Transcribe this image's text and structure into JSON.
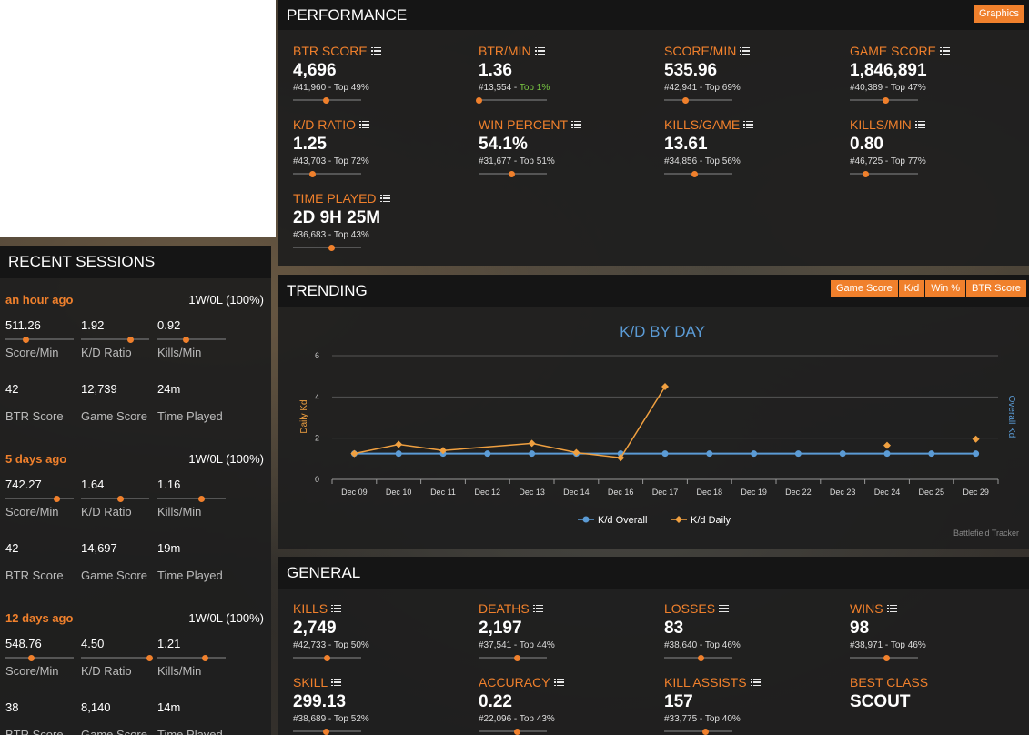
{
  "performance": {
    "title": "PERFORMANCE",
    "graphics_button": "Graphics",
    "stats": [
      {
        "label": "BTR SCORE",
        "value": "4,696",
        "rank": "#41,960",
        "top": "Top 49%",
        "top_highlight": false,
        "fill": 0.49
      },
      {
        "label": "BTR/MIN",
        "value": "1.36",
        "rank": "#13,554",
        "top": "Top 1%",
        "top_highlight": true,
        "fill": 0.01
      },
      {
        "label": "SCORE/MIN",
        "value": "535.96",
        "rank": "#42,941",
        "top": "Top 69%",
        "top_highlight": false,
        "fill": 0.31
      },
      {
        "label": "GAME SCORE",
        "value": "1,846,891",
        "rank": "#40,389",
        "top": "Top 47%",
        "top_highlight": false,
        "fill": 0.53
      },
      {
        "label": "K/D RATIO",
        "value": "1.25",
        "rank": "#43,703",
        "top": "Top 72%",
        "top_highlight": false,
        "fill": 0.28
      },
      {
        "label": "WIN PERCENT",
        "value": "54.1%",
        "rank": "#31,677",
        "top": "Top 51%",
        "top_highlight": false,
        "fill": 0.49
      },
      {
        "label": "KILLS/GAME",
        "value": "13.61",
        "rank": "#34,856",
        "top": "Top 56%",
        "top_highlight": false,
        "fill": 0.44
      },
      {
        "label": "KILLS/MIN",
        "value": "0.80",
        "rank": "#46,725",
        "top": "Top 77%",
        "top_highlight": false,
        "fill": 0.23
      },
      {
        "label": "TIME PLAYED",
        "value": "2D 9H 25M",
        "rank": "#36,683",
        "top": "Top 43%",
        "top_highlight": false,
        "fill": 0.57
      }
    ]
  },
  "recent_sessions": {
    "title": "RECENT SESSIONS",
    "sessions": [
      {
        "time": "an hour ago",
        "result": "1W/0L (100%)",
        "stats": [
          {
            "value": "511.26",
            "label": "Score/Min",
            "fill": 0.3
          },
          {
            "value": "1.92",
            "label": "K/D Ratio",
            "fill": 0.72
          },
          {
            "value": "0.92",
            "label": "Kills/Min",
            "fill": 0.42
          },
          {
            "value": "42",
            "label": "BTR Score"
          },
          {
            "value": "12,739",
            "label": "Game Score"
          },
          {
            "value": "24m",
            "label": "Time Played"
          }
        ]
      },
      {
        "time": "5 days ago",
        "result": "1W/0L (100%)",
        "stats": [
          {
            "value": "742.27",
            "label": "Score/Min",
            "fill": 0.75
          },
          {
            "value": "1.64",
            "label": "K/D Ratio",
            "fill": 0.58
          },
          {
            "value": "1.16",
            "label": "Kills/Min",
            "fill": 0.65
          },
          {
            "value": "42",
            "label": "BTR Score"
          },
          {
            "value": "14,697",
            "label": "Game Score"
          },
          {
            "value": "19m",
            "label": "Time Played"
          }
        ]
      },
      {
        "time": "12 days ago",
        "result": "1W/0L (100%)",
        "stats": [
          {
            "value": "548.76",
            "label": "Score/Min",
            "fill": 0.38
          },
          {
            "value": "4.50",
            "label": "K/D Ratio",
            "fill": 1.0
          },
          {
            "value": "1.21",
            "label": "Kills/Min",
            "fill": 0.7
          },
          {
            "value": "38",
            "label": "BTR Score"
          },
          {
            "value": "8,140",
            "label": "Game Score"
          },
          {
            "value": "14m",
            "label": "Time Played"
          }
        ]
      }
    ]
  },
  "trending": {
    "title": "TRENDING",
    "tabs": [
      "Game Score",
      "K/d",
      "Win %",
      "BTR Score"
    ],
    "credit": "Battlefield Tracker"
  },
  "chart_data": {
    "type": "line",
    "title": "K/D BY DAY",
    "categories": [
      "Dec 09",
      "Dec 10",
      "Dec 11",
      "Dec 12",
      "Dec 13",
      "Dec 14",
      "Dec 16",
      "Dec 17",
      "Dec 18",
      "Dec 19",
      "Dec 22",
      "Dec 23",
      "Dec 24",
      "Dec 25",
      "Dec 29"
    ],
    "ylabel": "Daily Kd",
    "y2label": "Overall Kd",
    "ylim": [
      0,
      6
    ],
    "yticks": [
      0,
      2,
      4,
      6
    ],
    "grid": true,
    "legend": "bottom",
    "series": [
      {
        "name": "K/d Overall",
        "color": "#5b9bd5",
        "values": [
          1.25,
          1.25,
          1.25,
          1.25,
          1.25,
          1.25,
          1.25,
          1.25,
          1.25,
          1.25,
          1.25,
          1.25,
          1.25,
          1.25,
          1.25
        ]
      },
      {
        "name": "K/d Daily",
        "color": "#f0a040",
        "values": [
          1.25,
          1.7,
          1.4,
          null,
          1.75,
          1.3,
          1.05,
          4.5,
          null,
          null,
          null,
          null,
          1.65,
          null,
          1.95
        ]
      }
    ]
  },
  "general": {
    "title": "GENERAL",
    "stats": [
      {
        "label": "KILLS",
        "value": "2,749",
        "rank": "#42,733",
        "top": "Top 50%",
        "fill": 0.5,
        "has_icon": true
      },
      {
        "label": "DEATHS",
        "value": "2,197",
        "rank": "#37,541",
        "top": "Top 44%",
        "fill": 0.56,
        "has_icon": true
      },
      {
        "label": "LOSSES",
        "value": "83",
        "rank": "#38,640",
        "top": "Top 46%",
        "fill": 0.54,
        "has_icon": true
      },
      {
        "label": "WINS",
        "value": "98",
        "rank": "#38,971",
        "top": "Top 46%",
        "fill": 0.54,
        "has_icon": true
      },
      {
        "label": "SKILL",
        "value": "299.13",
        "rank": "#38,689",
        "top": "Top 52%",
        "fill": 0.48,
        "has_icon": true
      },
      {
        "label": "ACCURACY",
        "value": "0.22",
        "rank": "#22,096",
        "top": "Top 43%",
        "fill": 0.57,
        "has_icon": true
      },
      {
        "label": "KILL ASSISTS",
        "value": "157",
        "rank": "#33,775",
        "top": "Top 40%",
        "fill": 0.6,
        "has_icon": true
      },
      {
        "label": "BEST CLASS",
        "value": "SCOUT",
        "rank": "",
        "top": "",
        "fill": null,
        "has_icon": false
      }
    ]
  }
}
